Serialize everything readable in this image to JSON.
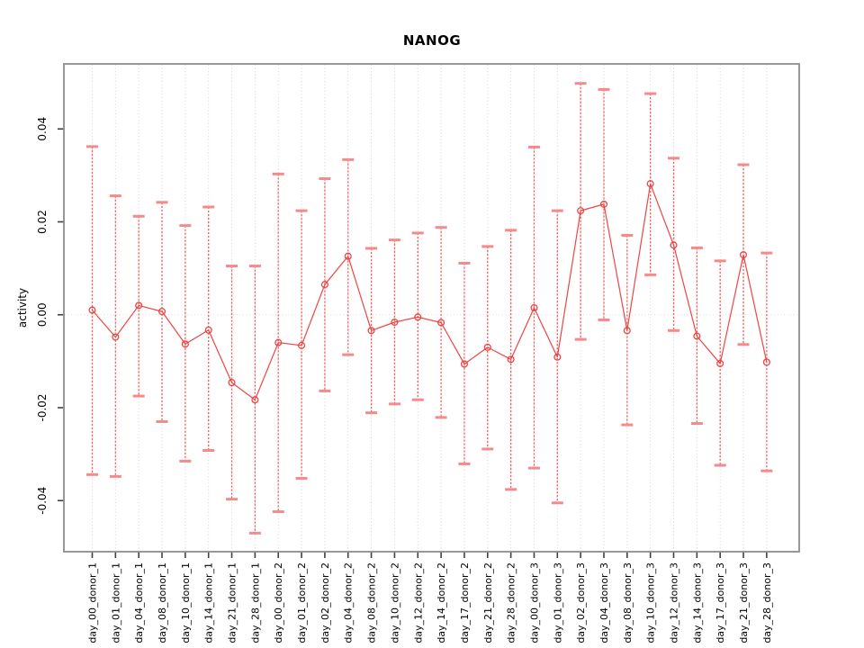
{
  "window": {
    "background": "#ffffff"
  },
  "chart_data": {
    "type": "line",
    "title": "NANOG",
    "xlabel": "",
    "ylabel": "activity",
    "legend_position": "none",
    "grid": "dotted vertical gridline per category, dotted horizontal line at zero",
    "ylim": [
      -0.051,
      0.054
    ],
    "ytick_values": [
      -0.04,
      -0.02,
      0.0,
      0.02,
      0.04
    ],
    "ytick_labels": [
      "-0.04",
      "-0.02",
      "0.00",
      "0.02",
      "0.04"
    ],
    "categories": [
      "day_00_donor_1",
      "day_01_donor_1",
      "day_04_donor_1",
      "day_08_donor_1",
      "day_10_donor_1",
      "day_14_donor_1",
      "day_21_donor_1",
      "day_28_donor_1",
      "day_00_donor_2",
      "day_01_donor_2",
      "day_02_donor_2",
      "day_04_donor_2",
      "day_08_donor_2",
      "day_10_donor_2",
      "day_12_donor_2",
      "day_14_donor_2",
      "day_17_donor_2",
      "day_21_donor_2",
      "day_28_donor_2",
      "day_00_donor_3",
      "day_01_donor_3",
      "day_02_donor_3",
      "day_04_donor_3",
      "day_08_donor_3",
      "day_10_donor_3",
      "day_12_donor_3",
      "day_14_donor_3",
      "day_17_donor_3",
      "day_21_donor_3",
      "day_28_donor_3"
    ],
    "series": [
      {
        "name": "activity",
        "marker": "open-circle",
        "values": [
          0.001,
          -0.0048,
          0.002,
          0.0007,
          -0.0063,
          -0.0033,
          -0.0146,
          -0.0183,
          -0.006,
          -0.0066,
          0.0065,
          0.0126,
          -0.0034,
          -0.0016,
          -0.0005,
          -0.0017,
          -0.0106,
          -0.007,
          -0.0096,
          0.0015,
          -0.0091,
          0.0224,
          0.0238,
          -0.0034,
          0.0282,
          0.015,
          -0.0046,
          -0.0105,
          0.0129,
          -0.0102
        ],
        "error_high": [
          0.0362,
          0.0256,
          0.0212,
          0.0242,
          0.0192,
          0.0232,
          0.0105,
          0.0105,
          0.0303,
          0.0224,
          0.0293,
          0.0334,
          0.0143,
          0.0161,
          0.0176,
          0.0188,
          0.0111,
          0.0147,
          0.0182,
          0.0361,
          0.0224,
          0.0498,
          0.0485,
          0.0171,
          0.0476,
          0.0337,
          0.0144,
          0.0116,
          0.0323,
          0.0133
        ],
        "error_low": [
          -0.0344,
          -0.0348,
          -0.0175,
          -0.023,
          -0.0315,
          -0.0292,
          -0.0397,
          -0.047,
          -0.0424,
          -0.0352,
          -0.0164,
          -0.0086,
          -0.0211,
          -0.0192,
          -0.0183,
          -0.0221,
          -0.0321,
          -0.0289,
          -0.0376,
          -0.033,
          -0.0405,
          -0.0053,
          -0.0011,
          -0.0237,
          0.0086,
          -0.0034,
          -0.0234,
          -0.0324,
          -0.0064,
          -0.0336
        ]
      }
    ]
  },
  "colors": {
    "series": "#ef4444",
    "error_line": "#f26060",
    "error_cap": "#f58a8a",
    "grid": "#d4d4d4",
    "zero_line": "#dadada",
    "box": "#8c8c8c",
    "tick": "#404040",
    "text": "#000000"
  }
}
